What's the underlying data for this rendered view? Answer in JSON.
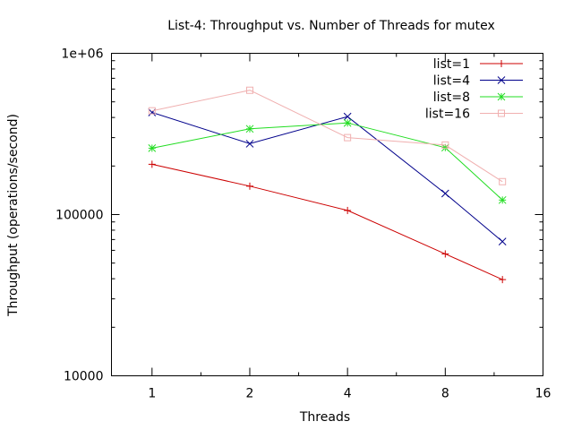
{
  "chart_data": {
    "type": "line",
    "title": "List-4: Throughput vs. Number of Threads for mutex",
    "xlabel": "Threads",
    "ylabel": "Throughput (operations/second)",
    "x_scale": "log2",
    "y_scale": "log10",
    "xlim": [
      0.75,
      16
    ],
    "ylim": [
      10000,
      1000000
    ],
    "x_ticks": [
      1,
      2,
      4,
      8,
      16
    ],
    "x_tick_labels": [
      "1",
      "2",
      "4",
      "8",
      "16"
    ],
    "y_ticks": [
      10000,
      100000,
      1000000
    ],
    "y_tick_labels": [
      "10000",
      "100000",
      "1e+06"
    ],
    "x": [
      1,
      2,
      4,
      8,
      12
    ],
    "legend_position": "top-right",
    "grid": false,
    "series": [
      {
        "name": "list=1",
        "color": "#cc0000",
        "marker": "plus",
        "values": [
          205000,
          150000,
          106000,
          57000,
          39500
        ]
      },
      {
        "name": "list=4",
        "color": "#00008b",
        "marker": "cross",
        "values": [
          430000,
          275000,
          405000,
          135000,
          68000
        ]
      },
      {
        "name": "list=8",
        "color": "#22dd22",
        "marker": "star",
        "values": [
          258000,
          340000,
          370000,
          260000,
          123000
        ]
      },
      {
        "name": "list=16",
        "color": "#f0b0b0",
        "marker": "square",
        "values": [
          440000,
          590000,
          300000,
          270000,
          160000
        ]
      }
    ]
  }
}
